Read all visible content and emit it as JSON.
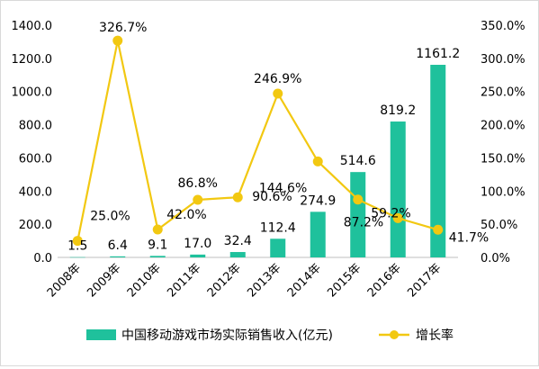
{
  "chart_data": {
    "type": "bar+line",
    "categories": [
      "2008年",
      "2009年",
      "2010年",
      "2011年",
      "2012年",
      "2013年",
      "2014年",
      "2015年",
      "2016年",
      "2017年"
    ],
    "series": [
      {
        "name": "中国移动游戏市场实际销售收入(亿元)",
        "type": "bar",
        "axis": "left",
        "values": [
          1.5,
          6.4,
          9.1,
          17.0,
          32.4,
          112.4,
          274.9,
          514.6,
          819.2,
          1161.2
        ],
        "labels": [
          "1.5",
          "6.4",
          "9.1",
          "17.0",
          "32.4",
          "112.4",
          "274.9",
          "514.6",
          "819.2",
          "1161.2"
        ],
        "color": "#1fc19c"
      },
      {
        "name": "增长率",
        "type": "line",
        "axis": "right",
        "values": [
          25.0,
          326.7,
          42.0,
          86.8,
          90.6,
          246.9,
          144.6,
          87.2,
          59.2,
          41.7
        ],
        "labels": [
          "25.0%",
          "326.7%",
          "42.0%",
          "86.8%",
          "90.6%",
          "246.9%",
          "144.6%",
          "87.2%",
          "59.2%",
          "41.7%"
        ],
        "color": "#f2c811"
      }
    ],
    "y_left": {
      "min": 0,
      "max": 1400,
      "step": 200,
      "ticks": [
        "0.0",
        "200.0",
        "400.0",
        "600.0",
        "800.0",
        "1000.0",
        "1200.0",
        "1400.0"
      ]
    },
    "y_right": {
      "min": 0,
      "max": 350,
      "step": 50,
      "ticks": [
        "0.0%",
        "50.0%",
        "100.0%",
        "150.0%",
        "200.0%",
        "250.0%",
        "300.0%",
        "350.0%"
      ]
    },
    "grid": false,
    "legend_position": "bottom"
  }
}
